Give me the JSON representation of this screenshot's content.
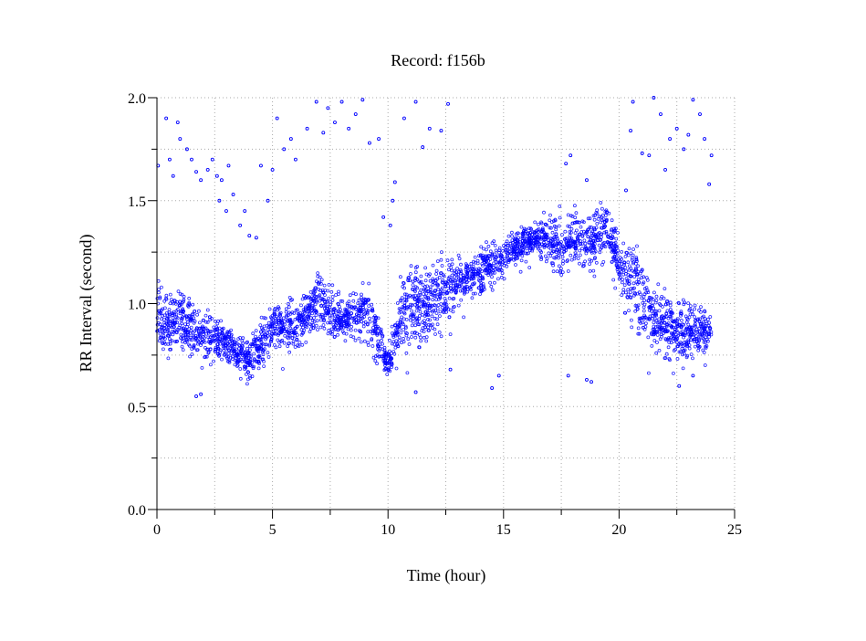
{
  "chart_data": {
    "type": "scatter",
    "title": "Record:  f156b",
    "xlabel": "Time (hour)",
    "ylabel": "RR Interval (second)",
    "xlim": [
      0,
      25
    ],
    "ylim": [
      0,
      2.0
    ],
    "xticks": [
      "0",
      "5",
      "10",
      "15",
      "20",
      "25"
    ],
    "yticks": [
      "0.0",
      "0.5",
      "1.0",
      "1.5",
      "2.0"
    ],
    "grid": true,
    "color": "#0000ff",
    "band_hours": [
      0,
      0.5,
      1,
      1.5,
      2,
      2.5,
      3,
      3.5,
      4,
      4.5,
      5,
      5.5,
      6,
      6.5,
      7,
      7.5,
      8,
      8.5,
      9,
      9.5,
      10,
      10.5,
      11,
      11.5,
      12,
      12.5,
      13,
      13.5,
      14,
      14.5,
      15,
      15.5,
      16,
      16.5,
      17,
      17.5,
      18,
      18.5,
      19,
      19.5,
      20,
      20.5,
      21,
      21.5,
      22,
      22.5,
      23,
      23.5,
      24
    ],
    "band_low": [
      0.78,
      0.75,
      0.8,
      0.75,
      0.72,
      0.72,
      0.7,
      0.67,
      0.63,
      0.7,
      0.75,
      0.8,
      0.78,
      0.85,
      0.9,
      0.85,
      0.85,
      0.85,
      0.85,
      0.75,
      0.65,
      0.75,
      0.8,
      0.8,
      0.85,
      0.9,
      1.0,
      1.05,
      1.05,
      1.1,
      1.15,
      1.2,
      1.22,
      1.25,
      1.2,
      1.15,
      1.2,
      1.2,
      1.2,
      1.25,
      1.1,
      0.9,
      0.8,
      0.8,
      0.78,
      0.75,
      0.72,
      0.75,
      0.8
    ],
    "band_high": [
      1.1,
      1.05,
      1.05,
      1.0,
      0.95,
      0.95,
      0.9,
      0.85,
      0.82,
      0.9,
      1.0,
      1.0,
      1.0,
      1.05,
      1.15,
      1.1,
      1.0,
      1.05,
      1.1,
      1.0,
      0.75,
      1.1,
      1.15,
      1.15,
      1.2,
      1.2,
      1.2,
      1.2,
      1.25,
      1.3,
      1.3,
      1.35,
      1.38,
      1.4,
      1.42,
      1.42,
      1.45,
      1.42,
      1.45,
      1.5,
      1.3,
      1.3,
      1.3,
      1.05,
      1.05,
      1.0,
      1.0,
      1.0,
      0.95
    ],
    "outliers": [
      [
        0.05,
        1.67
      ],
      [
        0.4,
        1.9
      ],
      [
        0.55,
        1.7
      ],
      [
        0.7,
        1.62
      ],
      [
        0.9,
        1.88
      ],
      [
        1.0,
        1.8
      ],
      [
        1.3,
        1.75
      ],
      [
        1.5,
        1.7
      ],
      [
        1.7,
        1.64
      ],
      [
        1.9,
        1.6
      ],
      [
        2.2,
        1.65
      ],
      [
        2.4,
        1.7
      ],
      [
        2.6,
        1.62
      ],
      [
        2.8,
        1.6
      ],
      [
        2.7,
        1.5
      ],
      [
        3.0,
        1.45
      ],
      [
        3.1,
        1.67
      ],
      [
        3.3,
        1.53
      ],
      [
        3.6,
        1.38
      ],
      [
        3.8,
        1.45
      ],
      [
        4.0,
        1.33
      ],
      [
        4.3,
        1.32
      ],
      [
        4.5,
        1.67
      ],
      [
        4.8,
        1.5
      ],
      [
        5.0,
        1.65
      ],
      [
        5.2,
        1.9
      ],
      [
        5.5,
        1.75
      ],
      [
        5.8,
        1.8
      ],
      [
        6.0,
        1.7
      ],
      [
        6.5,
        1.85
      ],
      [
        6.9,
        1.98
      ],
      [
        7.2,
        1.83
      ],
      [
        7.4,
        1.95
      ],
      [
        7.7,
        1.88
      ],
      [
        8.0,
        1.98
      ],
      [
        8.3,
        1.85
      ],
      [
        8.6,
        1.92
      ],
      [
        8.9,
        1.99
      ],
      [
        9.2,
        1.78
      ],
      [
        9.6,
        1.8
      ],
      [
        9.8,
        1.42
      ],
      [
        10.1,
        1.38
      ],
      [
        10.2,
        1.5
      ],
      [
        10.3,
        1.59
      ],
      [
        10.7,
        1.9
      ],
      [
        11.2,
        1.98
      ],
      [
        11.5,
        1.76
      ],
      [
        11.8,
        1.85
      ],
      [
        12.3,
        1.84
      ],
      [
        12.6,
        1.97
      ],
      [
        1.7,
        0.55
      ],
      [
        1.9,
        0.56
      ],
      [
        11.2,
        0.57
      ],
      [
        14.5,
        0.59
      ],
      [
        14.8,
        0.65
      ],
      [
        12.7,
        0.68
      ],
      [
        17.9,
        1.72
      ],
      [
        17.7,
        1.68
      ],
      [
        18.6,
        1.6
      ],
      [
        18.8,
        0.62
      ],
      [
        18.6,
        0.63
      ],
      [
        17.8,
        0.65
      ],
      [
        20.3,
        1.55
      ],
      [
        20.5,
        1.84
      ],
      [
        20.6,
        1.98
      ],
      [
        21.0,
        1.73
      ],
      [
        21.3,
        1.72
      ],
      [
        21.5,
        2.0
      ],
      [
        21.8,
        1.92
      ],
      [
        22.0,
        1.65
      ],
      [
        22.2,
        1.8
      ],
      [
        22.5,
        1.85
      ],
      [
        22.8,
        1.75
      ],
      [
        23.0,
        1.82
      ],
      [
        23.2,
        1.99
      ],
      [
        23.5,
        1.92
      ],
      [
        23.7,
        1.8
      ],
      [
        23.9,
        1.58
      ],
      [
        24.0,
        1.72
      ],
      [
        21.5,
        0.85
      ],
      [
        22.6,
        0.6
      ],
      [
        23.2,
        0.65
      ]
    ]
  }
}
